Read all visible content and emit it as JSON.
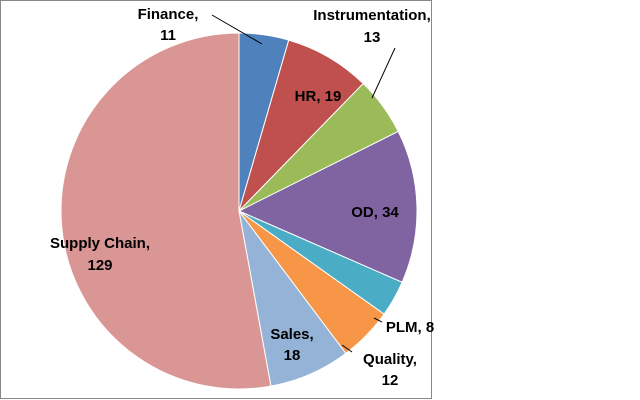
{
  "chart_data": {
    "type": "pie",
    "categories": [
      "Finance",
      "HR",
      "Instrumentation",
      "OD",
      "PLM",
      "Quality",
      "Sales",
      "Supply Chain"
    ],
    "values": [
      11,
      19,
      13,
      34,
      8,
      12,
      18,
      129
    ],
    "colors": [
      "#4f81bd",
      "#c0504d",
      "#9bbb59",
      "#8064a2",
      "#4bacc6",
      "#f79646",
      "#95b3d7",
      "#d99694"
    ],
    "label_separator": ", "
  }
}
